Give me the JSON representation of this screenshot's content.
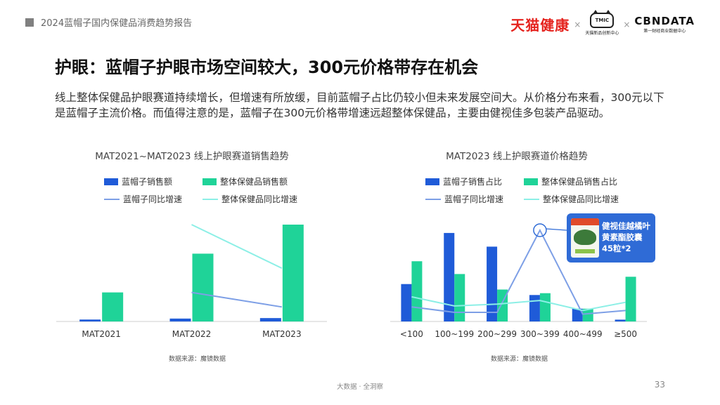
{
  "header": {
    "report_title": "2024蓝帽子国内保健品消费趋势报告",
    "logo_tmall": "天猫健康",
    "logo_x": "×",
    "logo_tmic": "TMIC",
    "logo_tmic_sub": "天猫新品创新中心",
    "logo_cbn": "CBNDATA",
    "logo_cbn_sub": "第一财经商业数据中心"
  },
  "main_title": "护眼：蓝帽子护眼市场空间较大，300元价格带存在机会",
  "summary": "线上整体保健品护眼赛道持续增长，但增速有所放缓，目前蓝帽子占比仍较小但未来发展空间大。从价格分布来看，300元以下是蓝帽子主流价格。而值得注意的是，蓝帽子在300元价格带增速远超整体保健品，主要由健视佳多包装产品驱动。",
  "colors": {
    "blue_bar": "#1f5bd8",
    "green_bar": "#1fd398",
    "blue_line": "#7d9fe6",
    "cyan_line": "#8cefe6",
    "card_bg": "#2f6bd6"
  },
  "chart_data": [
    {
      "type": "bar",
      "title": "MAT2021~MAT2023 线上护眼赛道销售趋势",
      "categories": [
        "MAT2021",
        "MAT2022",
        "MAT2023"
      ],
      "series": [
        {
          "name": "蓝帽子销售额",
          "kind": "bar",
          "values": [
            2,
            3,
            3.5
          ]
        },
        {
          "name": "整体保健品销售额",
          "kind": "bar",
          "values": [
            30,
            70,
            100
          ]
        },
        {
          "name": "蓝帽子同比增速",
          "kind": "line",
          "values": [
            null,
            30,
            15
          ]
        },
        {
          "name": "整体保健品同比增速",
          "kind": "line",
          "values": [
            null,
            100,
            55
          ]
        }
      ],
      "source": "数据来源：魔镜数据"
    },
    {
      "type": "bar",
      "title": "MAT2023 线上护眼赛道价格趋势",
      "categories": [
        "<100",
        "100~199",
        "200~299",
        "300~399",
        "400~499",
        "≥500"
      ],
      "series": [
        {
          "name": "蓝帽子销售占比",
          "kind": "bar",
          "values": [
            41,
            97,
            82,
            29,
            14,
            2
          ]
        },
        {
          "name": "整体保健品销售占比",
          "kind": "bar",
          "values": [
            66,
            52,
            35,
            31,
            14,
            49
          ]
        },
        {
          "name": "蓝帽子同比增速",
          "kind": "line",
          "values": [
            16,
            10,
            10,
            100,
            8,
            12
          ]
        },
        {
          "name": "整体保健品同比增速",
          "kind": "line",
          "values": [
            27,
            17,
            19,
            23,
            12,
            21
          ]
        }
      ],
      "annotation": {
        "category": "300~399",
        "product": "健视佳越橘叶黄素酯胶囊45粒*2"
      },
      "source": "数据来源：魔镜数据"
    }
  ],
  "product_card": {
    "line1": "健视佳越橘叶",
    "line2": "黄素酯胶囊",
    "line3": "45粒*2"
  },
  "footer": {
    "text": "大数据 · 全洞察",
    "page_number": "33"
  }
}
